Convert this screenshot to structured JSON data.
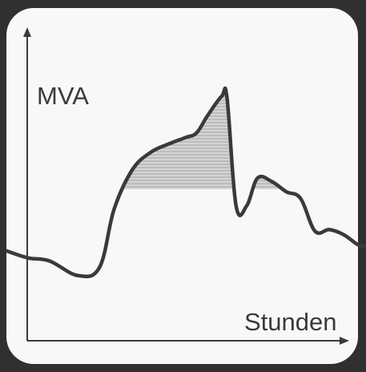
{
  "chart_data": {
    "type": "line",
    "ylabel": "MVA",
    "xlabel": "Stunden",
    "title": "",
    "grid": false,
    "colors": {
      "line": "#3a3a3a",
      "fill": "#b9b9b9",
      "background": "#f8f8f6",
      "frame": "#303030"
    },
    "series": [
      {
        "points": [
          [
            0,
            0.356
          ],
          [
            0.06,
            0.328
          ],
          [
            0.12,
            0.316
          ],
          [
            0.2,
            0.258
          ],
          [
            0.26,
            0.292
          ],
          [
            0.3,
            0.52
          ],
          [
            0.35,
            0.675
          ],
          [
            0.4,
            0.744
          ],
          [
            0.45,
            0.778
          ],
          [
            0.5,
            0.805
          ],
          [
            0.53,
            0.823
          ],
          [
            0.56,
            0.89
          ],
          [
            0.6,
            0.968
          ],
          [
            0.615,
            0.96
          ],
          [
            0.64,
            0.535
          ],
          [
            0.67,
            0.535
          ],
          [
            0.7,
            0.644
          ],
          [
            0.74,
            0.63
          ],
          [
            0.78,
            0.59
          ],
          [
            0.82,
            0.563
          ],
          [
            0.86,
            0.434
          ],
          [
            0.9,
            0.44
          ],
          [
            0.94,
            0.42
          ],
          [
            0.98,
            0.38
          ],
          [
            1.0,
            0.375
          ]
        ]
      }
    ],
    "shaded_region": {
      "x_start": 0.32,
      "x_end": 0.81,
      "y_threshold": 0.6
    }
  }
}
